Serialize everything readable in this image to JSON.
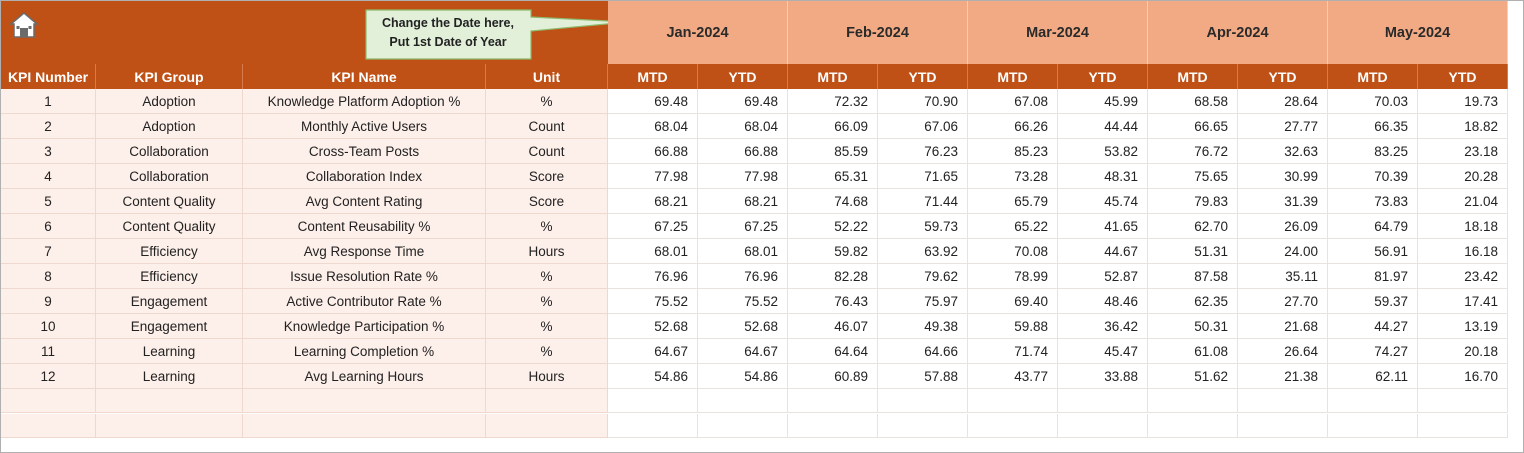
{
  "header": {
    "note": [
      "Change the Date here,",
      "Put 1st Date of Year"
    ],
    "months": [
      "Jan-2024",
      "Feb-2024",
      "Mar-2024",
      "Apr-2024",
      "May-2024"
    ]
  },
  "table": {
    "columns": [
      "KPI Number",
      "KPI Group",
      "KPI Name",
      "Unit",
      "MTD",
      "YTD",
      "MTD",
      "YTD",
      "MTD",
      "YTD",
      "MTD",
      "YTD",
      "MTD",
      "YTD"
    ],
    "rows": [
      [
        "1",
        "Adoption",
        "Knowledge Platform Adoption %",
        "%",
        "69.48",
        "69.48",
        "72.32",
        "70.90",
        "67.08",
        "45.99",
        "68.58",
        "28.64",
        "70.03",
        "19.73"
      ],
      [
        "2",
        "Adoption",
        "Monthly Active Users",
        "Count",
        "68.04",
        "68.04",
        "66.09",
        "67.06",
        "66.26",
        "44.44",
        "66.65",
        "27.77",
        "66.35",
        "18.82"
      ],
      [
        "3",
        "Collaboration",
        "Cross-Team Posts",
        "Count",
        "66.88",
        "66.88",
        "85.59",
        "76.23",
        "85.23",
        "53.82",
        "76.72",
        "32.63",
        "83.25",
        "23.18"
      ],
      [
        "4",
        "Collaboration",
        "Collaboration Index",
        "Score",
        "77.98",
        "77.98",
        "65.31",
        "71.65",
        "73.28",
        "48.31",
        "75.65",
        "30.99",
        "70.39",
        "20.28"
      ],
      [
        "5",
        "Content Quality",
        "Avg Content Rating",
        "Score",
        "68.21",
        "68.21",
        "74.68",
        "71.44",
        "65.79",
        "45.74",
        "79.83",
        "31.39",
        "73.83",
        "21.04"
      ],
      [
        "6",
        "Content Quality",
        "Content Reusability %",
        "%",
        "67.25",
        "67.25",
        "52.22",
        "59.73",
        "65.22",
        "41.65",
        "62.70",
        "26.09",
        "64.79",
        "18.18"
      ],
      [
        "7",
        "Efficiency",
        "Avg Response Time",
        "Hours",
        "68.01",
        "68.01",
        "59.82",
        "63.92",
        "70.08",
        "44.67",
        "51.31",
        "24.00",
        "56.91",
        "16.18"
      ],
      [
        "8",
        "Efficiency",
        "Issue Resolution Rate %",
        "%",
        "76.96",
        "76.96",
        "82.28",
        "79.62",
        "78.99",
        "52.87",
        "87.58",
        "35.11",
        "81.97",
        "23.42"
      ],
      [
        "9",
        "Engagement",
        "Active Contributor Rate %",
        "%",
        "75.52",
        "75.52",
        "76.43",
        "75.97",
        "69.40",
        "48.46",
        "62.35",
        "27.70",
        "59.37",
        "17.41"
      ],
      [
        "10",
        "Engagement",
        "Knowledge Participation %",
        "%",
        "52.68",
        "52.68",
        "46.07",
        "49.38",
        "59.88",
        "36.42",
        "50.31",
        "21.68",
        "44.27",
        "13.19"
      ],
      [
        "11",
        "Learning",
        "Learning Completion %",
        "%",
        "64.67",
        "64.67",
        "64.64",
        "64.66",
        "71.74",
        "45.47",
        "61.08",
        "26.64",
        "74.27",
        "20.18"
      ],
      [
        "12",
        "Learning",
        "Avg Learning Hours",
        "Hours",
        "54.86",
        "54.86",
        "60.89",
        "57.88",
        "43.77",
        "33.88",
        "51.62",
        "21.38",
        "62.11",
        "16.70"
      ]
    ]
  }
}
